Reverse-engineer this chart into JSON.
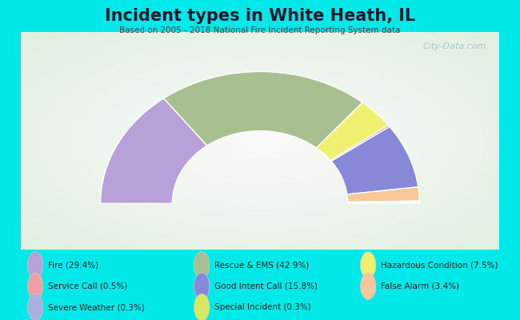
{
  "title": "Incident types in White Heath, IL",
  "subtitle": "Based on 2005 - 2018 National Fire Incident Reporting System data",
  "bg_color": "#00e8e8",
  "chart_bg_gradient": true,
  "watermark": "City-Data.com",
  "segments": [
    {
      "label": "Fire (29.4%)",
      "value": 29.4,
      "color": "#b8a0d8"
    },
    {
      "label": "Service Call (0.5%)",
      "value": 0.5,
      "color": "#f0a0a0"
    },
    {
      "label": "Severe Weather (0.3%)",
      "value": 0.3,
      "color": "#a8b0e0"
    },
    {
      "label": "Rescue & EMS (42.9%)",
      "value": 42.9,
      "color": "#a8c090"
    },
    {
      "label": "Good Intent Call (15.8%)",
      "value": 15.8,
      "color": "#8888d8"
    },
    {
      "label": "Special Incident (0.3%)",
      "value": 0.3,
      "color": "#d8e860"
    },
    {
      "label": "Hazardous Condition (7.5%)",
      "value": 7.5,
      "color": "#f0f070"
    },
    {
      "label": "False Alarm (3.4%)",
      "value": 3.4,
      "color": "#f8c898"
    }
  ],
  "legend_cols": [
    [
      {
        "label": "Fire (29.4%)",
        "color": "#b8a0d8"
      },
      {
        "label": "Service Call (0.5%)",
        "color": "#f0a0a0"
      },
      {
        "label": "Severe Weather (0.3%)",
        "color": "#a8b0e0"
      }
    ],
    [
      {
        "label": "Rescue & EMS (42.9%)",
        "color": "#a8c090"
      },
      {
        "label": "Good Intent Call (15.8%)",
        "color": "#8888d8"
      },
      {
        "label": "Special Incident (0.3%)",
        "color": "#d8e860"
      }
    ],
    [
      {
        "label": "Hazardous Condition (7.5%)",
        "color": "#f0f070"
      },
      {
        "label": "False Alarm (3.4%)",
        "color": "#f8c898"
      }
    ]
  ],
  "outer_r": 1.0,
  "inner_r": 0.55,
  "title_fontsize": 15,
  "subtitle_fontsize": 7.5,
  "legend_fontsize": 7.5
}
